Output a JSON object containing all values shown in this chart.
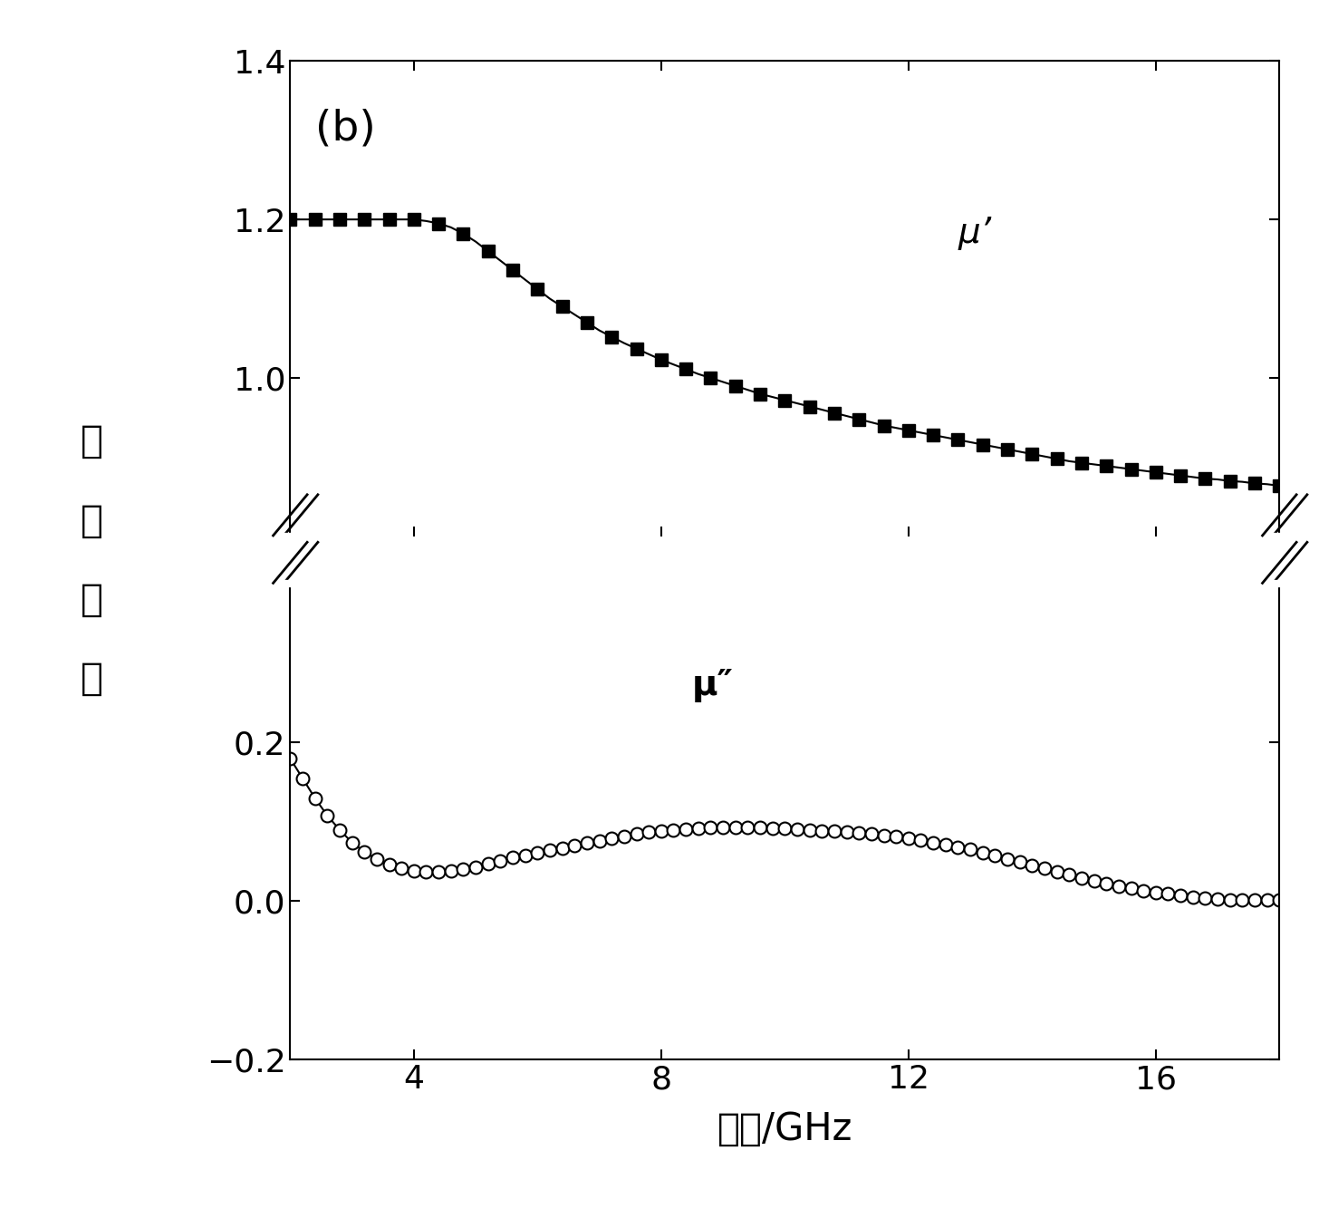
{
  "title_label": "(b)",
  "xlabel": "频率/GHz",
  "ylabel_chars": [
    "复",
    "磁",
    "导",
    "率"
  ],
  "mu_prime_label": "μ’",
  "mu_double_prime_label": "μ″",
  "x_ticks": [
    4,
    8,
    12,
    16
  ],
  "x_min": 2.0,
  "x_max": 18.0,
  "upper_ylim": [
    0.8,
    1.4
  ],
  "lower_ylim": [
    -0.2,
    0.4
  ],
  "upper_yticks": [
    1.0,
    1.2,
    1.4
  ],
  "lower_yticks": [
    -0.2,
    0.0,
    0.2
  ],
  "mu_prime_x": [
    2.0,
    2.2,
    2.4,
    2.6,
    2.8,
    3.0,
    3.2,
    3.4,
    3.6,
    3.8,
    4.0,
    4.2,
    4.4,
    4.6,
    4.8,
    5.0,
    5.2,
    5.4,
    5.6,
    5.8,
    6.0,
    6.2,
    6.4,
    6.6,
    6.8,
    7.0,
    7.2,
    7.4,
    7.6,
    7.8,
    8.0,
    8.2,
    8.4,
    8.6,
    8.8,
    9.0,
    9.2,
    9.4,
    9.6,
    9.8,
    10.0,
    10.2,
    10.4,
    10.6,
    10.8,
    11.0,
    11.2,
    11.4,
    11.6,
    11.8,
    12.0,
    12.2,
    12.4,
    12.6,
    12.8,
    13.0,
    13.2,
    13.4,
    13.6,
    13.8,
    14.0,
    14.2,
    14.4,
    14.6,
    14.8,
    15.0,
    15.2,
    15.4,
    15.6,
    15.8,
    16.0,
    16.2,
    16.4,
    16.6,
    16.8,
    17.0,
    17.2,
    17.4,
    17.6,
    17.8,
    18.0
  ],
  "mu_prime_y": [
    1.2,
    1.2,
    1.2,
    1.2,
    1.2,
    1.2,
    1.2,
    1.2,
    1.2,
    1.2,
    1.2,
    1.198,
    1.195,
    1.19,
    1.182,
    1.172,
    1.16,
    1.148,
    1.136,
    1.124,
    1.112,
    1.1,
    1.09,
    1.08,
    1.07,
    1.06,
    1.052,
    1.044,
    1.037,
    1.03,
    1.023,
    1.017,
    1.011,
    1.005,
    1.0,
    0.995,
    0.99,
    0.985,
    0.98,
    0.976,
    0.972,
    0.968,
    0.964,
    0.96,
    0.956,
    0.952,
    0.948,
    0.944,
    0.94,
    0.937,
    0.934,
    0.931,
    0.928,
    0.925,
    0.922,
    0.919,
    0.916,
    0.913,
    0.91,
    0.907,
    0.904,
    0.901,
    0.898,
    0.895,
    0.893,
    0.891,
    0.889,
    0.887,
    0.885,
    0.883,
    0.881,
    0.879,
    0.877,
    0.875,
    0.873,
    0.872,
    0.87,
    0.869,
    0.867,
    0.866,
    0.864
  ],
  "mu_double_prime_x": [
    2.0,
    2.2,
    2.4,
    2.6,
    2.8,
    3.0,
    3.2,
    3.4,
    3.6,
    3.8,
    4.0,
    4.2,
    4.4,
    4.6,
    4.8,
    5.0,
    5.2,
    5.4,
    5.6,
    5.8,
    6.0,
    6.2,
    6.4,
    6.6,
    6.8,
    7.0,
    7.2,
    7.4,
    7.6,
    7.8,
    8.0,
    8.2,
    8.4,
    8.6,
    8.8,
    9.0,
    9.2,
    9.4,
    9.6,
    9.8,
    10.0,
    10.2,
    10.4,
    10.6,
    10.8,
    11.0,
    11.2,
    11.4,
    11.6,
    11.8,
    12.0,
    12.2,
    12.4,
    12.6,
    12.8,
    13.0,
    13.2,
    13.4,
    13.6,
    13.8,
    14.0,
    14.2,
    14.4,
    14.6,
    14.8,
    15.0,
    15.2,
    15.4,
    15.6,
    15.8,
    16.0,
    16.2,
    16.4,
    16.6,
    16.8,
    17.0,
    17.2,
    17.4,
    17.6,
    17.8,
    18.0
  ],
  "mu_double_prime_y": [
    0.18,
    0.155,
    0.13,
    0.108,
    0.09,
    0.074,
    0.062,
    0.053,
    0.046,
    0.041,
    0.038,
    0.037,
    0.037,
    0.038,
    0.04,
    0.043,
    0.047,
    0.051,
    0.055,
    0.058,
    0.061,
    0.064,
    0.067,
    0.07,
    0.073,
    0.076,
    0.079,
    0.082,
    0.085,
    0.087,
    0.089,
    0.09,
    0.091,
    0.092,
    0.093,
    0.093,
    0.093,
    0.093,
    0.093,
    0.092,
    0.092,
    0.091,
    0.09,
    0.089,
    0.088,
    0.087,
    0.086,
    0.085,
    0.083,
    0.081,
    0.079,
    0.077,
    0.074,
    0.071,
    0.068,
    0.065,
    0.061,
    0.057,
    0.053,
    0.049,
    0.045,
    0.041,
    0.037,
    0.033,
    0.029,
    0.025,
    0.022,
    0.019,
    0.016,
    0.013,
    0.011,
    0.009,
    0.007,
    0.005,
    0.004,
    0.003,
    0.002,
    0.002,
    0.002,
    0.002,
    0.001
  ],
  "background_color": "#ffffff",
  "line_color": "#000000",
  "marker_size_square": 10,
  "marker_size_circle": 10,
  "linewidth": 1.5,
  "annotation_fontsize": 28,
  "axis_label_fontsize": 30,
  "tick_fontsize": 26,
  "panel_label_fontsize": 34
}
